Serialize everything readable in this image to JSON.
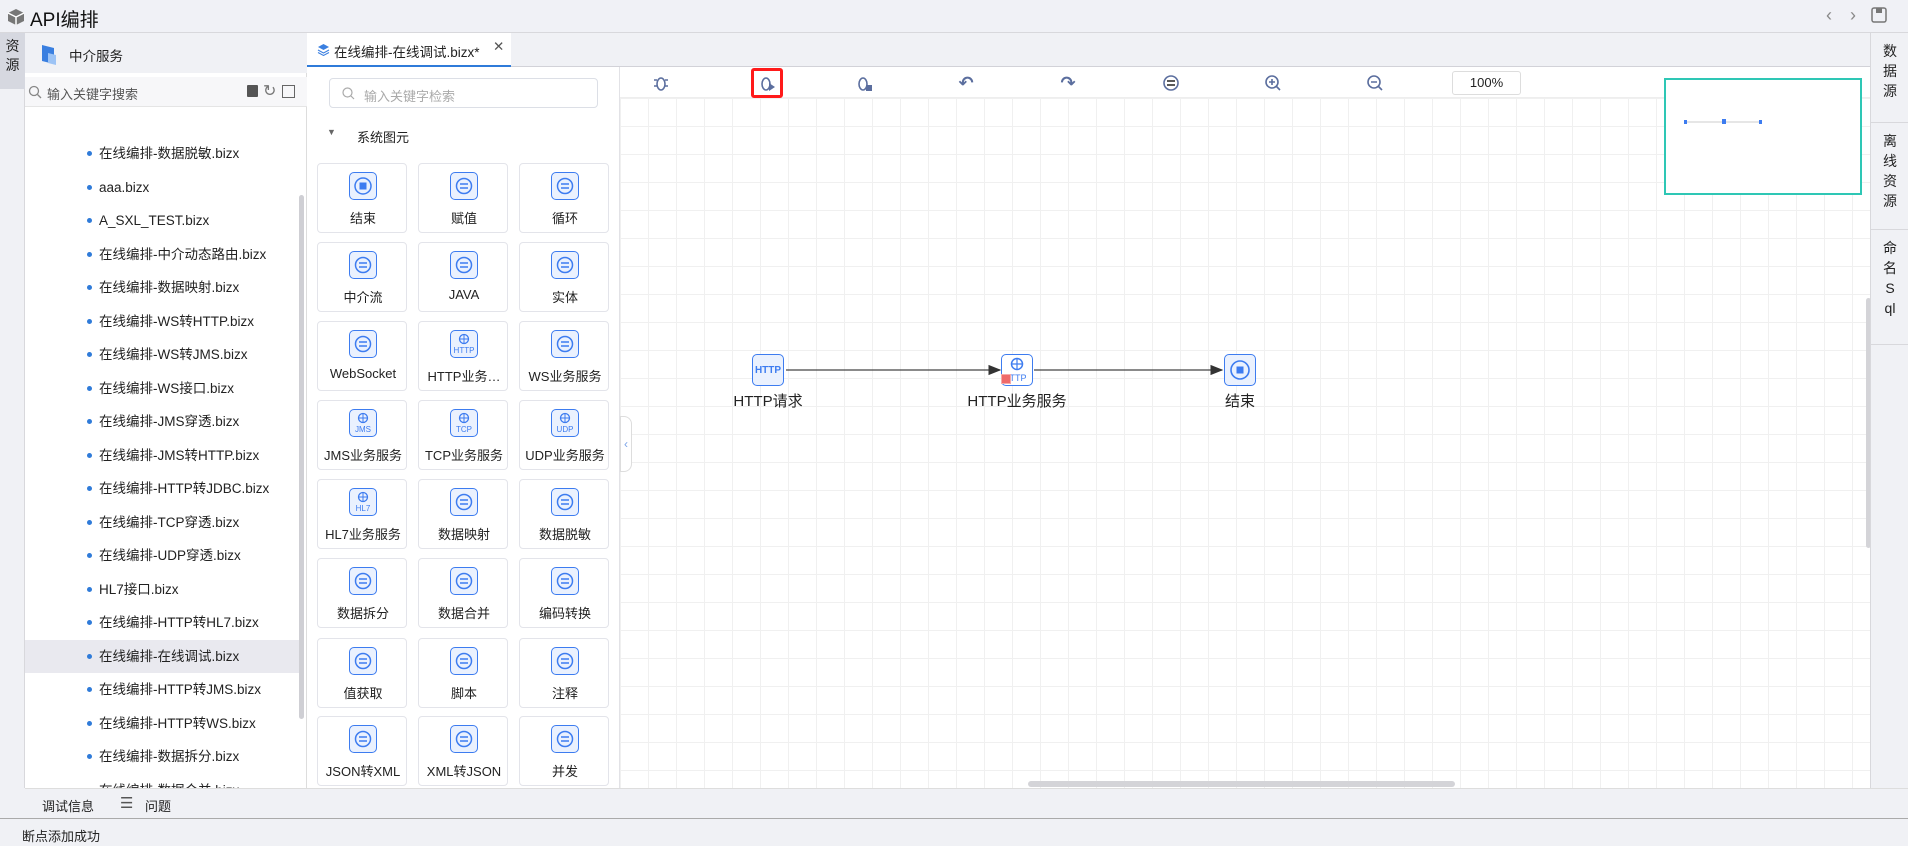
{
  "window": {
    "title": "API编排"
  },
  "left_strip": {
    "resource_tab": "资源"
  },
  "tree": {
    "header": "中介服务",
    "search_placeholder": "输入关键字搜索",
    "items": [
      "在线编排-数据脱敏.bizx",
      "aaa.bizx",
      "A_SXL_TEST.bizx",
      "在线编排-中介动态路由.bizx",
      "在线编排-数据映射.bizx",
      "在线编排-WS转HTTP.bizx",
      "在线编排-WS转JMS.bizx",
      "在线编排-WS接口.bizx",
      "在线编排-JMS穿透.bizx",
      "在线编排-JMS转HTTP.bizx",
      "在线编排-HTTP转JDBC.bizx",
      "在线编排-TCP穿透.bizx",
      "在线编排-UDP穿透.bizx",
      "HL7接口.bizx",
      "在线编排-HTTP转HL7.bizx",
      "在线编排-在线调试.bizx",
      "在线编排-HTTP转JMS.bizx",
      "在线编排-HTTP转WS.bizx",
      "在线编排-数据拆分.bizx",
      "在线编排-数据合并.bizx"
    ],
    "selected": "在线编排-在线调试.bizx"
  },
  "editor_tab": {
    "label": "在线编排-在线调试.bizx*"
  },
  "palette": {
    "search_placeholder": "输入关键字检索",
    "group": "系统图元",
    "items": [
      "结束",
      "赋值",
      "循环",
      "中介流",
      "JAVA",
      "实体",
      "WebSocket",
      "HTTP业务…",
      "WS业务服务",
      "JMS业务服务",
      "TCP业务服务",
      "UDP业务服务",
      "HL7业务服务",
      "数据映射",
      "数据脱敏",
      "数据拆分",
      "数据合并",
      "编码转换",
      "值获取",
      "脚本",
      "注释",
      "JSON转XML",
      "XML转JSON",
      "并发"
    ]
  },
  "toolbar": {
    "zoom": "100%",
    "icons": [
      "debug-breakpoint-icon",
      "debug-run-icon",
      "debug-stop-icon",
      "undo-icon",
      "redo-icon",
      "swap-icon",
      "zoom-in-icon",
      "zoom-out-icon"
    ],
    "highlighted": "debug-run-icon",
    "highlight_color": "#ff0000"
  },
  "flow": {
    "nodes": [
      {
        "label": "HTTP请求",
        "icon": "HTTP"
      },
      {
        "label": "HTTP业务服务",
        "icon": "HTTP",
        "breakpoint": true
      },
      {
        "label": "结束",
        "icon": "stop"
      }
    ]
  },
  "right_strip": {
    "tabs": [
      "数据源",
      "离线资源",
      "命名Sql"
    ]
  },
  "bottom": {
    "debug_info": "调试信息",
    "problems": "问题"
  },
  "status": {
    "message": "断点添加成功"
  },
  "colors": {
    "accent": "#3d7cf0",
    "minimap_border": "#2ec7b5"
  }
}
